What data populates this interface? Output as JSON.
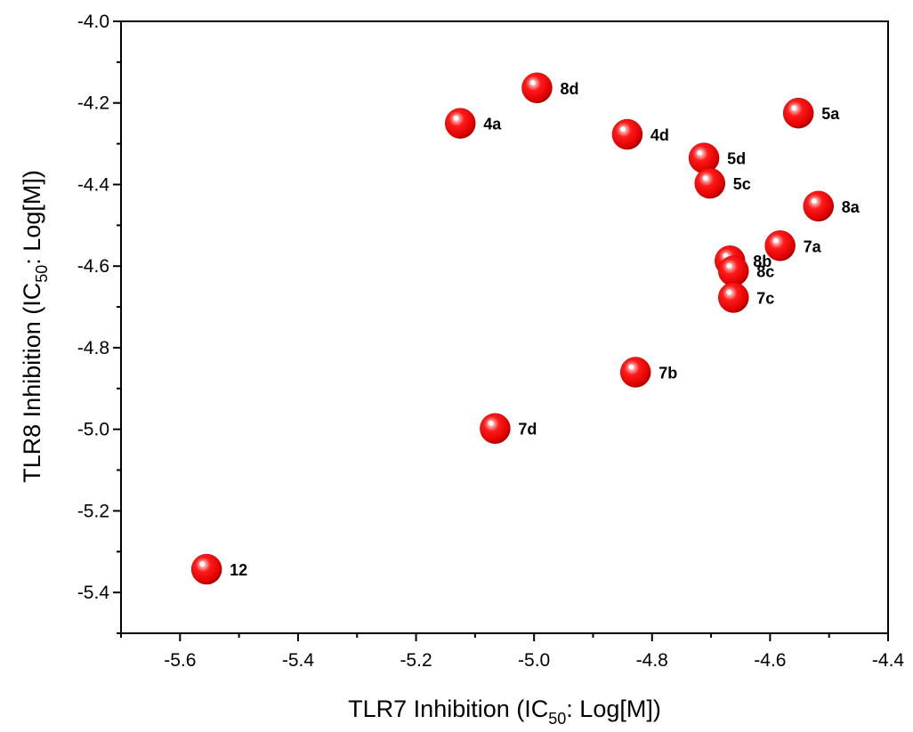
{
  "chart_data": {
    "type": "scatter",
    "title": "",
    "xlabel": {
      "prefix": "TLR7 Inhibition (IC",
      "sub": "50",
      "suffix": ": Log[M])"
    },
    "ylabel": {
      "prefix": "TLR8 Inhibition (IC",
      "sub": "50",
      "suffix": ": Log[M])"
    },
    "xlim": [
      -5.7,
      -4.4
    ],
    "ylim": [
      -5.5,
      -4.0
    ],
    "xticks": [
      "-5.6",
      "-5.4",
      "-5.2",
      "-5.0",
      "-4.8",
      "-4.6",
      "-4.4"
    ],
    "yticks": [
      "-4.0",
      "-4.2",
      "-4.4",
      "-4.6",
      "-4.8",
      "-5.0",
      "-5.2",
      "-5.4"
    ],
    "grid": false,
    "marker_color": "#e8000b",
    "points": [
      {
        "label": "8d",
        "x": -4.995,
        "y": -4.163
      },
      {
        "label": "4a",
        "x": -5.125,
        "y": -4.25
      },
      {
        "label": "4d",
        "x": -4.842,
        "y": -4.277
      },
      {
        "label": "5a",
        "x": -4.552,
        "y": -4.225
      },
      {
        "label": "5d",
        "x": -4.712,
        "y": -4.335
      },
      {
        "label": "5c",
        "x": -4.702,
        "y": -4.397
      },
      {
        "label": "8a",
        "x": -4.518,
        "y": -4.453
      },
      {
        "label": "7a",
        "x": -4.583,
        "y": -4.55
      },
      {
        "label": "8b",
        "x": -4.668,
        "y": -4.587
      },
      {
        "label": "8c",
        "x": -4.662,
        "y": -4.612
      },
      {
        "label": "7c",
        "x": -4.662,
        "y": -4.677
      },
      {
        "label": "7b",
        "x": -4.828,
        "y": -4.86
      },
      {
        "label": "7d",
        "x": -5.066,
        "y": -4.998
      },
      {
        "label": "12",
        "x": -5.555,
        "y": -5.343
      }
    ]
  }
}
